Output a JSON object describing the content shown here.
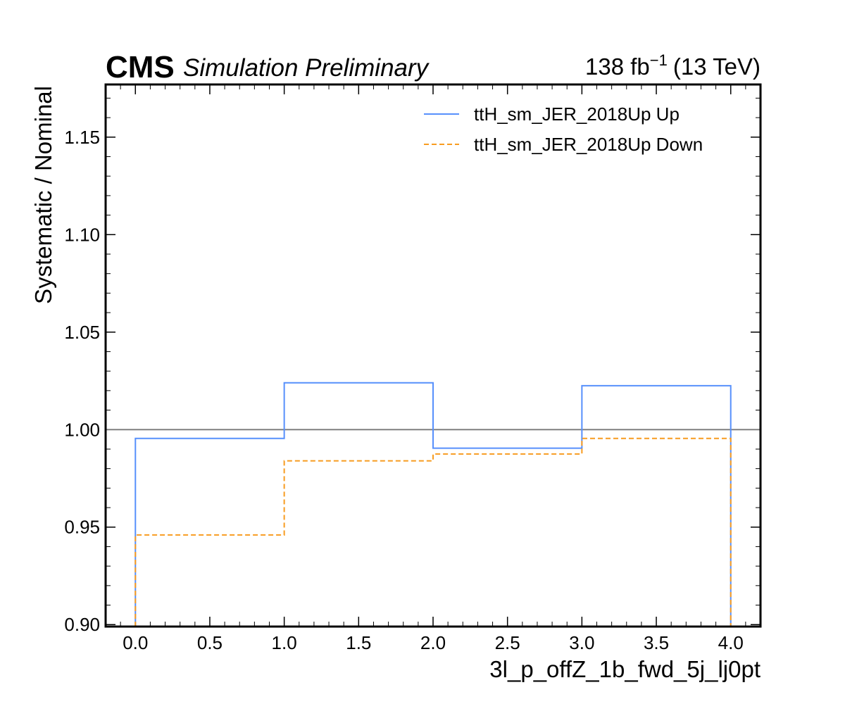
{
  "header": {
    "experiment": "CMS",
    "status": "Simulation Preliminary",
    "lumi_value": "138 fb",
    "lumi_exponent": "−1",
    "lumi_energy": "(13 TeV)"
  },
  "chart_data": {
    "type": "step",
    "xlabel": "3l_p_offZ_1b_fwd_5j_lj0pt",
    "ylabel": "Systematic / Nominal",
    "xlim": [
      -0.2,
      4.2
    ],
    "ylim": [
      0.899,
      1.177
    ],
    "x_ticks": [
      "0.0",
      "0.5",
      "1.0",
      "1.5",
      "2.0",
      "2.5",
      "3.0",
      "3.5",
      "4.0"
    ],
    "y_ticks": [
      "0.90",
      "0.95",
      "1.00",
      "1.05",
      "1.10",
      "1.15"
    ],
    "reference_line": 1.0,
    "bin_edges": [
      0,
      1,
      2,
      3,
      4
    ],
    "legend_position": "top-right",
    "series": [
      {
        "name": "ttH_sm_JER_2018Up Up",
        "color": "#5790fc",
        "style": "solid",
        "values": [
          0.9955,
          1.024,
          0.9905,
          1.0225
        ]
      },
      {
        "name": "ttH_sm_JER_2018Up Down",
        "color": "#f89c20",
        "style": "dashed",
        "values": [
          0.946,
          0.984,
          0.9875,
          0.9955
        ]
      }
    ],
    "reference_color": "#808080"
  }
}
